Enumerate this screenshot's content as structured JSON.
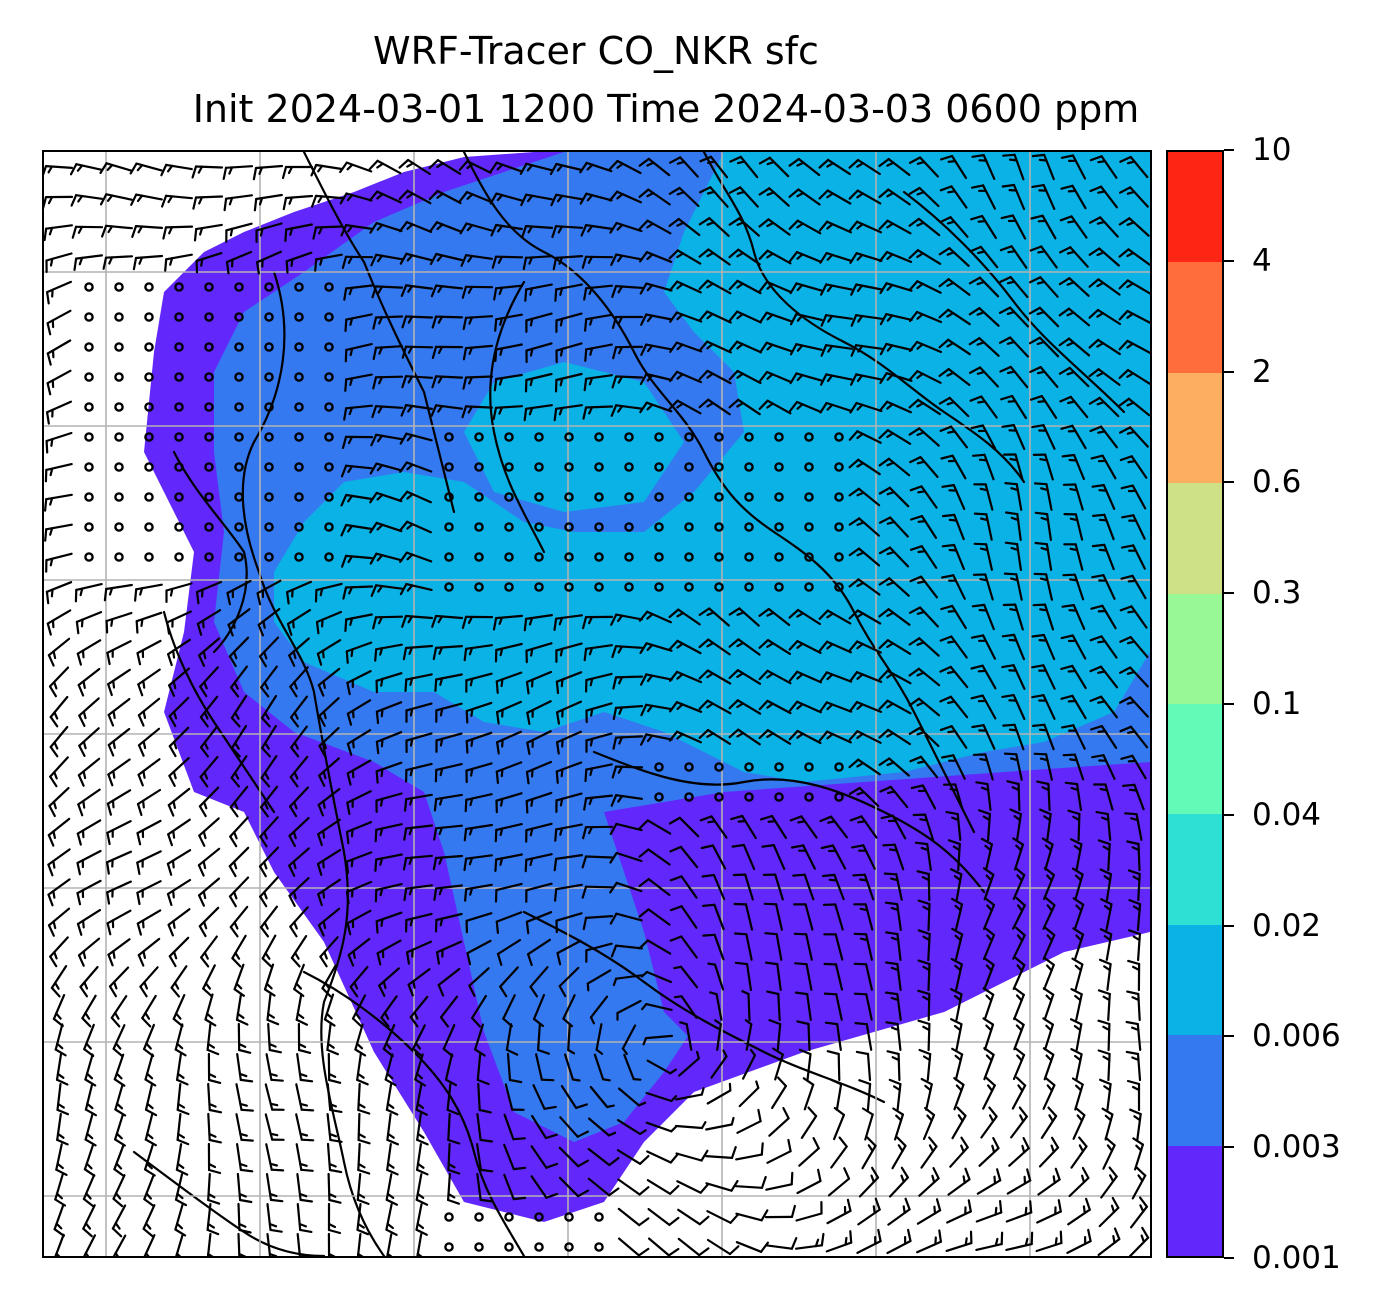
{
  "title": {
    "line1": "WRF-Tracer CO_NKR sfc",
    "line2": "Init 2024-03-01 1200 Time 2024-03-03 0600 ppm"
  },
  "map": {
    "variable": "CO_NKR",
    "level": "sfc",
    "units": "ppm",
    "init_time": "2024-03-01 1200",
    "valid_time": "2024-03-03 0600",
    "background_color": "#ffffff",
    "gridlines": true,
    "coastlines": true,
    "wind_barbs": true
  },
  "colorbar": {
    "levels": [
      "0.001",
      "0.003",
      "0.006",
      "0.02",
      "0.04",
      "0.1",
      "0.3",
      "0.6",
      "2",
      "4",
      "10"
    ],
    "colors": [
      "#6228fb",
      "#3579f0",
      "#0bb2e6",
      "#2ee0d3",
      "#62fab6",
      "#98f896",
      "#cfe187",
      "#feae61",
      "#ff6e3a",
      "#ff2514"
    ]
  }
}
